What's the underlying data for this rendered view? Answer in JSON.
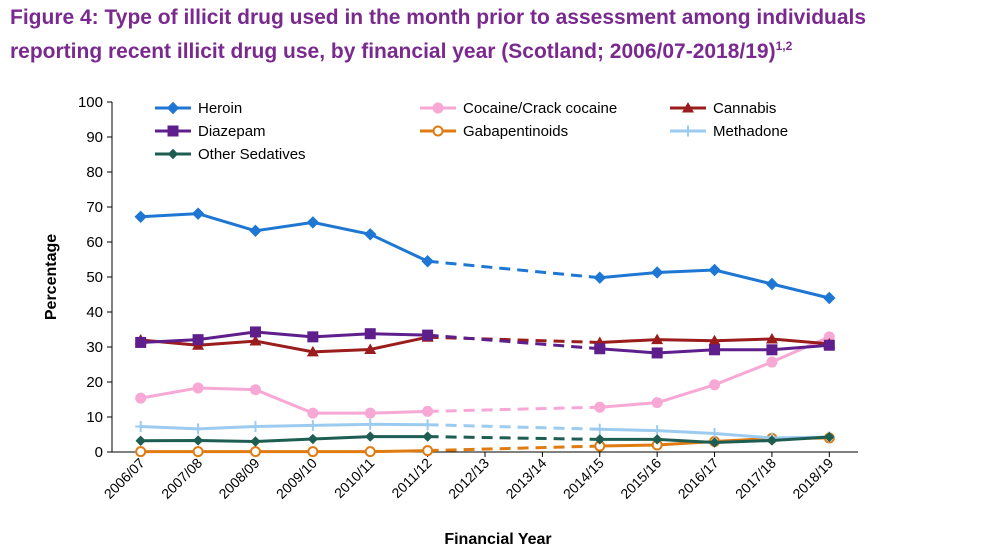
{
  "header": {
    "title_line1": "Figure 4: Type of illicit drug used in the month prior to assessment among individuals",
    "title_line2": "reporting recent illicit drug use, by financial year (Scotland; 2006/07-2018/19)",
    "title_superscript": "1,2"
  },
  "chart_data": {
    "type": "line",
    "title": "Figure 4: Type of illicit drug used in the month prior to assessment among individuals reporting recent illicit drug use, by financial year (Scotland; 2006/07-2018/19)",
    "xlabel": "Financial Year",
    "ylabel": "Percentage",
    "ylim": [
      0,
      100
    ],
    "yticks": [
      0,
      10,
      20,
      30,
      40,
      50,
      60,
      70,
      80,
      90,
      100
    ],
    "categories": [
      "2006/07",
      "2007/08",
      "2008/09",
      "2009/10",
      "2010/11",
      "2011/12",
      "2012/13",
      "2013/14",
      "2014/15",
      "2015/16",
      "2016/17",
      "2017/18",
      "2018/19"
    ],
    "dashed_between": [
      "2011/12",
      "2014/15"
    ],
    "legend_position": "top",
    "series": [
      {
        "name": "Heroin",
        "color": "#1f77d4",
        "marker": "diamond",
        "values": [
          67.2,
          68.1,
          63.2,
          65.6,
          62.2,
          54.5,
          null,
          null,
          49.8,
          51.3,
          52.0,
          48.0,
          44.0
        ]
      },
      {
        "name": "Cocaine/Crack cocaine",
        "color": "#f7a8d4",
        "marker": "circle",
        "values": [
          15.4,
          18.3,
          17.8,
          11.1,
          11.1,
          11.6,
          null,
          null,
          12.8,
          14.1,
          19.2,
          25.7,
          32.9
        ]
      },
      {
        "name": "Cannabis",
        "color": "#9b1c1c",
        "marker": "triangle",
        "values": [
          32.0,
          30.5,
          31.7,
          28.6,
          29.3,
          32.8,
          null,
          null,
          31.3,
          32.1,
          31.8,
          32.3,
          30.9
        ]
      },
      {
        "name": "Diazepam",
        "color": "#5e1f8c",
        "marker": "square",
        "values": [
          31.3,
          32.1,
          34.3,
          32.9,
          33.8,
          33.4,
          null,
          null,
          29.5,
          28.3,
          29.2,
          29.2,
          30.5
        ]
      },
      {
        "name": "Gabapentinoids",
        "color": "#e07b12",
        "marker": "circle-open",
        "values": [
          0.1,
          0.1,
          0.1,
          0.1,
          0.1,
          0.4,
          null,
          null,
          1.7,
          2.0,
          3.0,
          3.9,
          4.0
        ]
      },
      {
        "name": "Methadone",
        "color": "#9ccbf0",
        "marker": "plus",
        "values": [
          7.3,
          6.6,
          7.3,
          7.6,
          7.9,
          7.8,
          null,
          null,
          6.5,
          6.1,
          5.3,
          4.0,
          4.3
        ]
      },
      {
        "name": "Other Sedatives",
        "color": "#1e5e52",
        "marker": "diamond-small",
        "values": [
          3.2,
          3.3,
          3.0,
          3.7,
          4.4,
          4.4,
          null,
          null,
          3.6,
          3.6,
          2.7,
          3.3,
          4.3
        ]
      }
    ]
  }
}
